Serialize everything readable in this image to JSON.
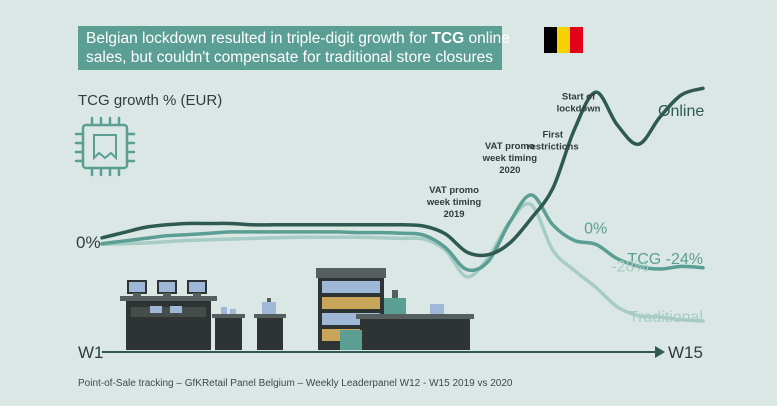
{
  "title": {
    "line1_prefix": "Belgian lockdown resulted in triple-digit growth for ",
    "line1_bold": "TCG",
    "line1_suffix": " online",
    "line2": "sales, but couldn't compensate for traditional store closures"
  },
  "flag_colors": [
    "#000000",
    "#f5d200",
    "#e2001a"
  ],
  "icon": "chip-icon",
  "colors": {
    "background": "#dbe7e4",
    "online": "#2f5a52",
    "tcg": "#5b9e93",
    "traditional": "#a7ccc6",
    "axis": "#2f5a52"
  },
  "chart_data": {
    "type": "line",
    "ylabel": "TCG growth % (EUR)",
    "y_zero_label": "0%",
    "x_start_label": "W1",
    "x_end_label": "W15",
    "x": [
      0,
      0.5,
      1,
      1.5,
      2,
      2.5,
      3,
      3.5,
      4,
      4.5,
      5,
      5.5,
      6,
      6.5,
      7,
      7.5,
      8,
      8.5,
      9,
      9.5,
      10,
      10.5,
      11,
      11.5,
      12,
      12.5,
      13,
      13.5,
      14
    ],
    "series": [
      {
        "name": "Online",
        "values": [
          4,
          8,
          12,
          14,
          15,
          15,
          15,
          14,
          14,
          14,
          14,
          14,
          14,
          14,
          14,
          13,
          7,
          -7,
          -9,
          0,
          19,
          42,
          87,
          116,
          91,
          76,
          97,
          114,
          119
        ]
      },
      {
        "name": "TCG -24%",
        "values": [
          -0.5,
          1.5,
          3.5,
          5.5,
          6.5,
          7.5,
          8.5,
          8.5,
          8.5,
          8.5,
          8.5,
          8.5,
          8,
          8,
          7.5,
          6,
          -3.5,
          -20.5,
          -14,
          16,
          37,
          14,
          2,
          -1,
          -12,
          -18,
          -20,
          -18,
          -19
        ]
      },
      {
        "name": "Traditional",
        "values": [
          -1,
          -0.5,
          0,
          1,
          2,
          2.5,
          3,
          3.5,
          4,
          4.5,
          4.5,
          4.5,
          4.5,
          4,
          3.5,
          3,
          -5.5,
          -26,
          -11,
          16.5,
          29.5,
          -5.5,
          -21,
          -34,
          -49,
          -56,
          -57,
          -59,
          -60
        ]
      }
    ],
    "value_labels": [
      {
        "text": "0%",
        "x": 11.5,
        "y": 1,
        "series": "TCG -24%"
      },
      {
        "text": "-28%",
        "x": 12.3,
        "y": -28,
        "series": "Traditional"
      }
    ],
    "annotations": [
      {
        "text": "VAT promo week timing 2019",
        "x": 8.2,
        "y": 20
      },
      {
        "text": "VAT promo week timing 2020",
        "x": 9.5,
        "y": 54
      },
      {
        "text": "First restrictions",
        "x": 10.5,
        "y": 72
      },
      {
        "text": "Start of lockdown",
        "x": 11.1,
        "y": 101
      }
    ],
    "ylim": [
      -75,
      140
    ],
    "xlim": [
      0,
      14
    ],
    "grid": false,
    "legend": "none"
  },
  "source": "Point-of-Sale tracking – GfKRetail Panel Belgium – Weekly Leaderpanel W12 - W15 2019 vs 2020"
}
